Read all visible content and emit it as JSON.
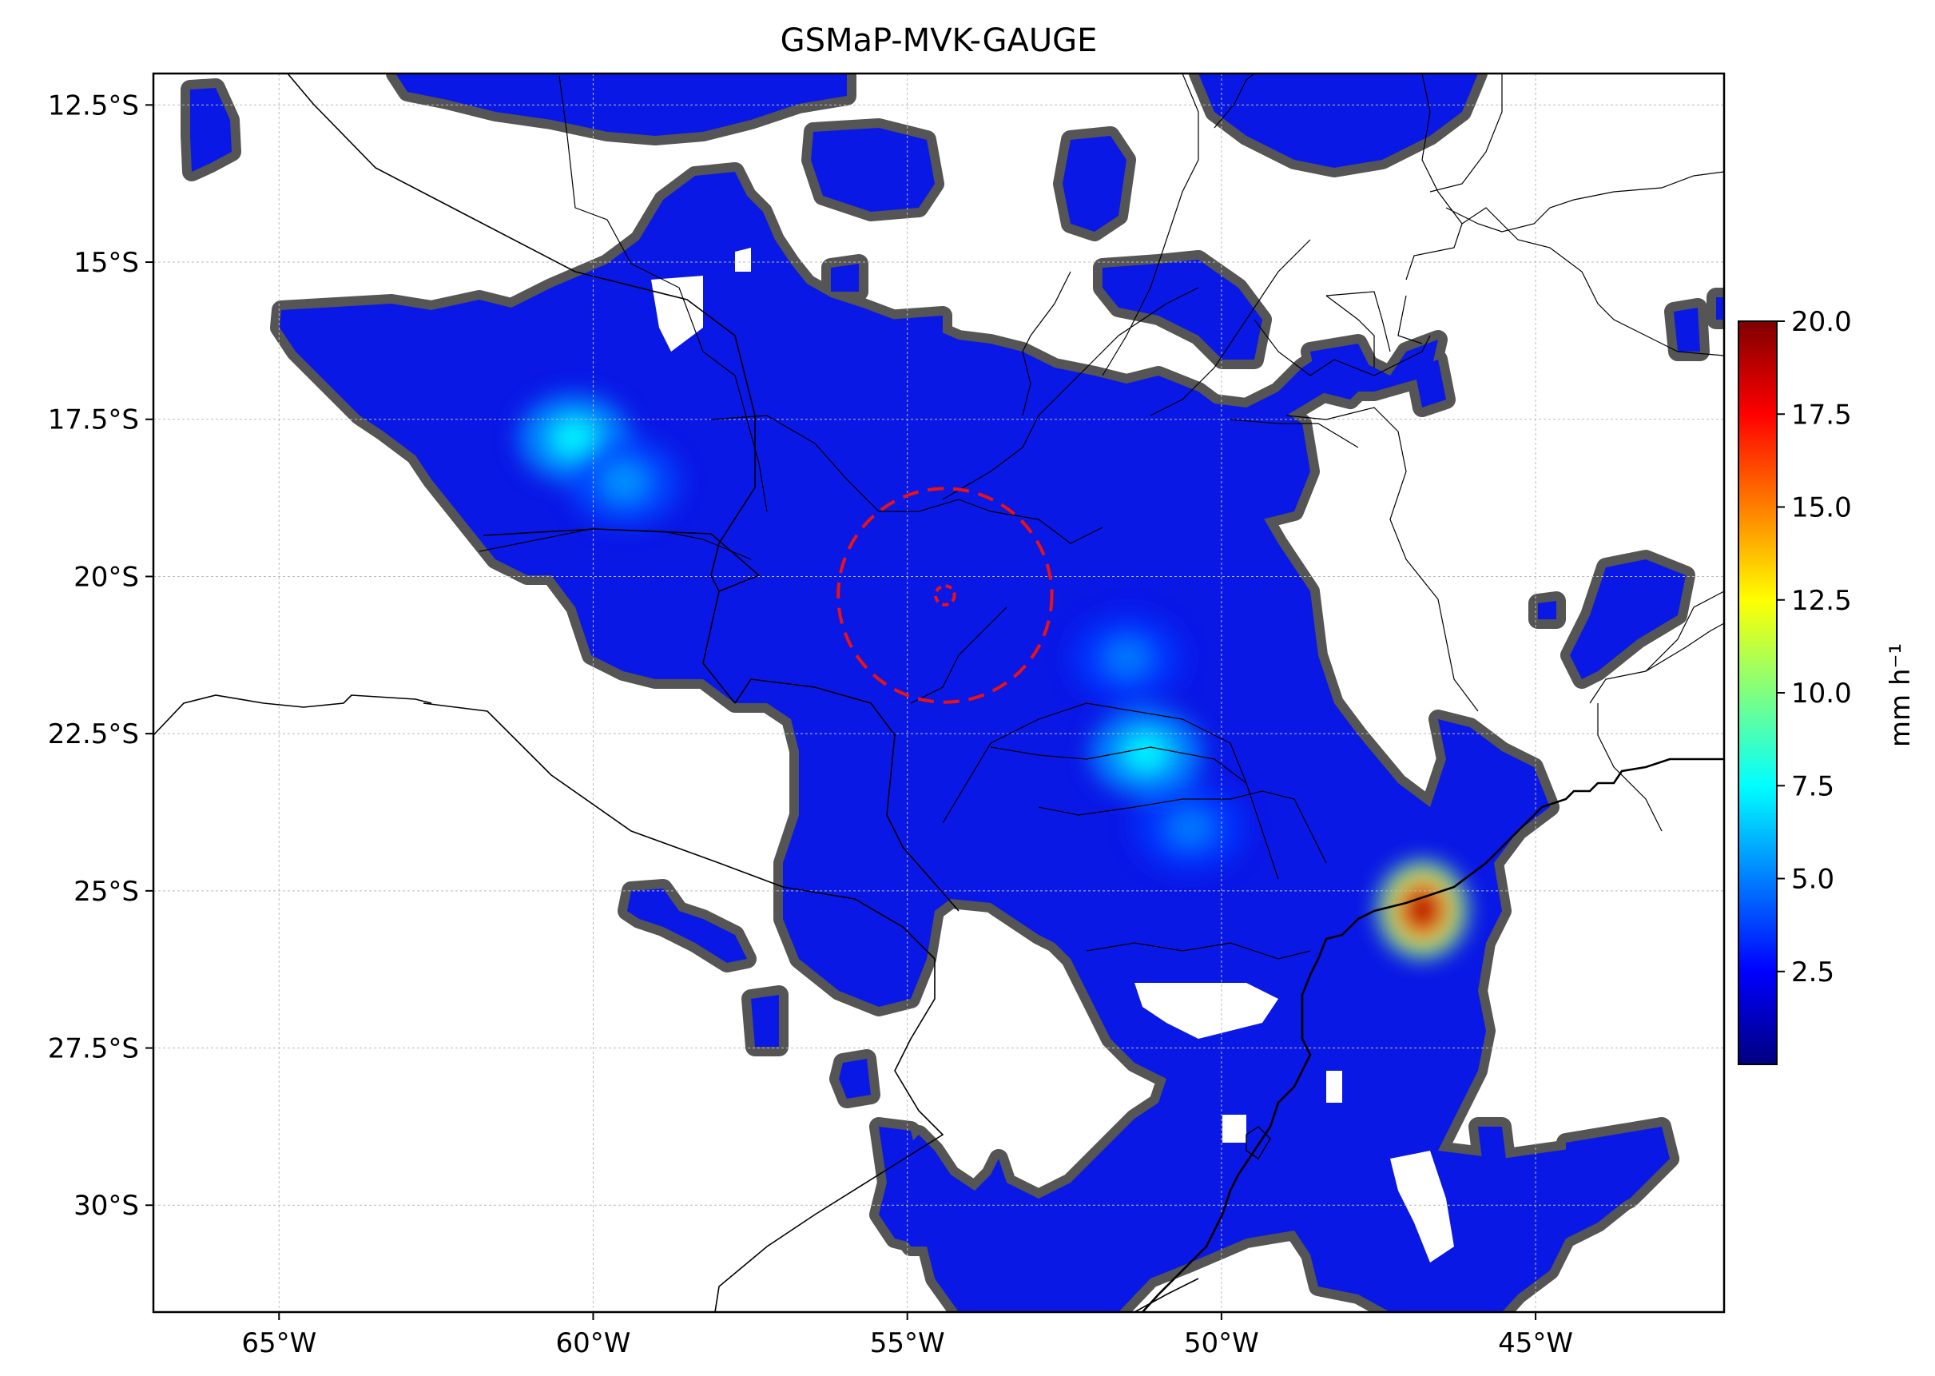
{
  "title": "GSMaP-MVK-GAUGE",
  "map": {
    "lon_range": [
      -67,
      -42
    ],
    "lat_range": [
      -31.7,
      -12.0
    ],
    "x_ticks": [
      {
        "lon": -65,
        "label": "65°W"
      },
      {
        "lon": -60,
        "label": "60°W"
      },
      {
        "lon": -55,
        "label": "55°W"
      },
      {
        "lon": -50,
        "label": "50°W"
      },
      {
        "lon": -45,
        "label": "45°W"
      }
    ],
    "y_ticks": [
      {
        "lat": -12.5,
        "label": "12.5°S"
      },
      {
        "lat": -15,
        "label": "15°S"
      },
      {
        "lat": -17.5,
        "label": "17.5°S"
      },
      {
        "lat": -20,
        "label": "20°S"
      },
      {
        "lat": -22.5,
        "label": "22.5°S"
      },
      {
        "lat": -25,
        "label": "25°S"
      },
      {
        "lat": -27.5,
        "label": "27.5°S"
      },
      {
        "lat": -30,
        "label": "30°S"
      }
    ],
    "gridlines": true,
    "circle_center": {
      "lon": -54.4,
      "lat": -20.3
    },
    "circle_radius_deg": 1.7,
    "inner_circle_radius_deg": 0.15,
    "circle_color": "#ee1111",
    "outline_color": "#555555",
    "rain_base_color": "#0a18e6"
  },
  "colorbar": {
    "label": "mm h⁻¹",
    "min": 0,
    "max": 20,
    "ticks": [
      {
        "value": 2.5,
        "label": "2.5"
      },
      {
        "value": 5,
        "label": "5.0"
      },
      {
        "value": 7.5,
        "label": "7.5"
      },
      {
        "value": 10,
        "label": "10.0"
      },
      {
        "value": 12.5,
        "label": "12.5"
      },
      {
        "value": 15,
        "label": "15.0"
      },
      {
        "value": 17.5,
        "label": "17.5"
      },
      {
        "value": 20,
        "label": "20.0"
      }
    ],
    "colormap": [
      "#00007f",
      "#0000ff",
      "#007fff",
      "#00ffff",
      "#7fff7f",
      "#ffff00",
      "#ff7f00",
      "#ff0000",
      "#7f0000"
    ]
  },
  "rain_hotspots": [
    {
      "lon": -60.3,
      "lat": -17.8,
      "value": 7.5
    },
    {
      "lon": -59.5,
      "lat": -18.5,
      "value": 5.5
    },
    {
      "lon": -51.2,
      "lat": -22.8,
      "value": 7.5
    },
    {
      "lon": -50.5,
      "lat": -24.0,
      "value": 5.0
    },
    {
      "lon": -51.5,
      "lat": -21.3,
      "value": 5.0
    },
    {
      "lon": -46.8,
      "lat": -25.3,
      "value": 19.0
    }
  ]
}
